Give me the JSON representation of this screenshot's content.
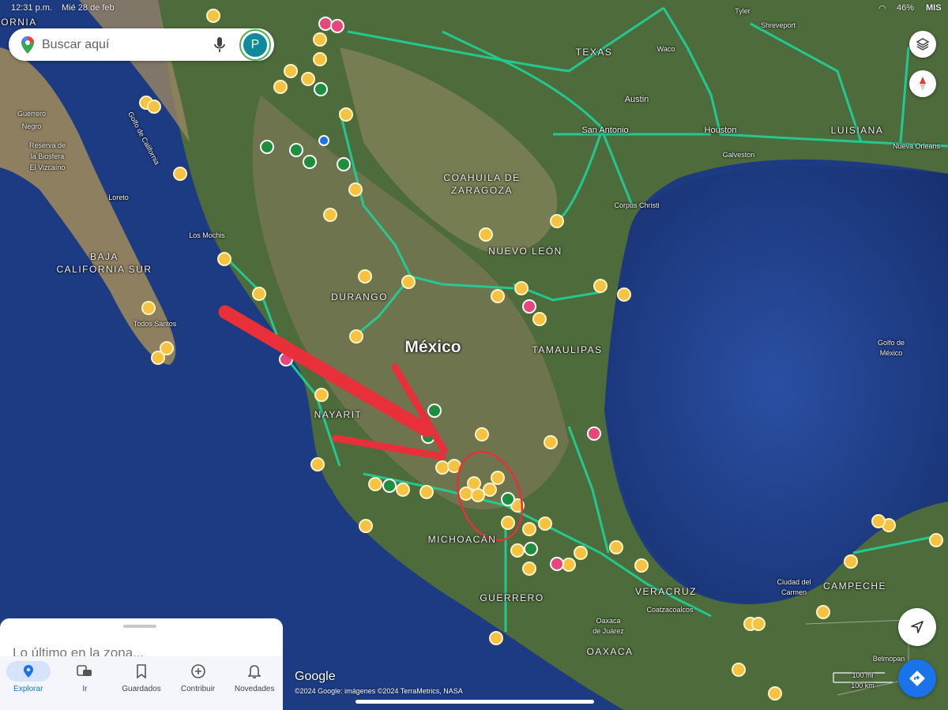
{
  "status_bar": {
    "time": "12:31 p.m.",
    "date": "Mié 28 de feb",
    "battery": "46%",
    "carrier_fragment": "MIS"
  },
  "search": {
    "placeholder": "Buscar aquí",
    "avatar_letter": "P"
  },
  "map": {
    "labels": {
      "texas": "TEXAS",
      "austin": "Austin",
      "san_antonio": "San Antonio",
      "houston": "Houston",
      "luisiana": "LUISIANA",
      "shreveport": "Shreveport",
      "waco": "Waco",
      "tyler": "Tyler",
      "coahuila_1": "COAHUILA DE",
      "coahuila_2": "ZARAGOZA",
      "corpus": "Corpus Christi",
      "nuevo_leon": "NUEVO LEÓN",
      "durango": "DURANGO",
      "mexico": "México",
      "tamaulipas": "TAMAULIPAS",
      "golfo_1": "Golfo de",
      "golfo_2": "México",
      "bcs_1": "BAJA",
      "bcs_2": "CALIFORNIA SUR",
      "los_mochis": "Los Mochis",
      "loreto": "Loreto",
      "todos_santos": "Todos Santos",
      "guerrero_negro_1": "Guerrero",
      "guerrero_negro_2": "Negro",
      "vizcaino_1": "Reserva de",
      "vizcaino_2": "la Biosfera",
      "vizcaino_3": "El Vizcaíno",
      "golfo_california": "Golfo de California",
      "nayarit": "NAYARIT",
      "michoacan": "MICHOACÁN",
      "guerrero": "GUERRERO",
      "veracruz": "VERACRUZ",
      "oaxaca": "OAXACA",
      "campeche": "CAMPECHE",
      "cd_carmen_1": "Ciudad del",
      "cd_carmen_2": "Carmen",
      "coatzacoalcos": "Coatzacoalcos",
      "oaxaca_city_1": "Oaxaca",
      "oaxaca_city_2": "de Juárez",
      "belmopan": "Belmopan",
      "nueva_orleans": "Nueva Orleans",
      "galveston": "Galveston",
      "california_fragment": "ORNIA",
      "scale_mi": "100 mi",
      "scale_km": "100 km"
    },
    "colors": {
      "ocean": "#1f3f8a",
      "land": "#4a6b3a",
      "roads": "#1fd39a",
      "pins": "#f5c242",
      "annotation": "#e8303a"
    }
  },
  "sheet": {
    "title": "Lo último en la zona..."
  },
  "nav": [
    {
      "label": "Explorar",
      "icon": "location-pin-icon",
      "active": true
    },
    {
      "label": "Ir",
      "icon": "commute-icon",
      "active": false
    },
    {
      "label": "Guardados",
      "icon": "bookmark-icon",
      "active": false
    },
    {
      "label": "Contribuir",
      "icon": "add-circle-icon",
      "active": false
    },
    {
      "label": "Novedades",
      "icon": "bell-icon",
      "active": false
    }
  ],
  "footer": {
    "logo": "Google",
    "attribution": "©2024 Google: imágenes ©2024 TerraMetrics, NASA"
  }
}
